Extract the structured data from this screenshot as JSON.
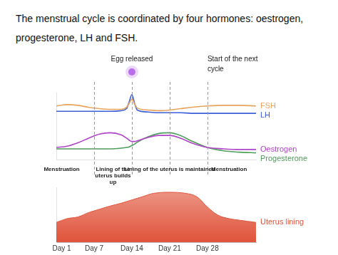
{
  "title": "The menstrual cycle is coordinated by four hormones: oestrogen, progesterone, LH and FSH.",
  "chart_data": [
    {
      "type": "line",
      "x": [
        0,
        2,
        4,
        6,
        8,
        10,
        12,
        13,
        13.5,
        14,
        14.5,
        15,
        17,
        19,
        21,
        23,
        25,
        28,
        31,
        34,
        37
      ],
      "series": [
        {
          "name": "FSH",
          "color": "#e8a45c",
          "values": [
            80,
            82,
            81,
            78,
            76,
            75,
            75,
            78,
            84,
            90,
            83,
            77,
            74,
            73,
            74,
            76,
            78,
            80,
            81,
            81,
            80
          ]
        },
        {
          "name": "LH",
          "color": "#3d5fd9",
          "values": [
            72,
            72,
            72,
            72,
            72,
            72,
            73,
            76,
            86,
            97,
            84,
            74,
            71,
            70,
            70,
            70,
            69,
            69,
            69,
            69,
            69
          ]
        },
        {
          "name": "Oestrogen",
          "color": "#b043c8",
          "values": [
            18,
            20,
            25,
            32,
            38,
            40,
            37,
            32,
            29,
            27,
            27,
            28,
            33,
            36,
            36,
            32,
            25,
            18,
            16,
            15,
            15
          ]
        },
        {
          "name": "Progesterone",
          "color": "#4e9e5c",
          "values": [
            16,
            16,
            16,
            16,
            16,
            16,
            17,
            18,
            19,
            21,
            23,
            26,
            34,
            39,
            40,
            36,
            28,
            18,
            13,
            11,
            10
          ]
        }
      ],
      "xlim": [
        0,
        37
      ],
      "ylim": [
        0,
        100
      ],
      "tick_labels": false,
      "grid": false,
      "dividers": [
        7,
        14,
        21,
        28
      ],
      "annotations": [
        {
          "text": "Egg released",
          "x": 14,
          "marker": "circle",
          "color": "#b86ee8"
        },
        {
          "text": "Start of the next cycle",
          "x": 28
        }
      ],
      "phases": [
        {
          "text": "Menstruation",
          "x": 1
        },
        {
          "text": "Lining of the uterus builds up",
          "x": 10.5
        },
        {
          "text": "Lining of the uterus is maintained",
          "x": 21
        },
        {
          "text": "Menstruation",
          "x": 32
        }
      ]
    },
    {
      "type": "area",
      "x": [
        0,
        2,
        4,
        6,
        8,
        10,
        12,
        14,
        16,
        18,
        21,
        24,
        26,
        28,
        30,
        32,
        34,
        37
      ],
      "series": [
        {
          "name": "Uterus lining",
          "color": "#e0533a",
          "values": [
            36,
            43,
            46,
            54,
            60,
            66,
            71,
            77,
            83,
            89,
            91,
            89,
            83,
            64,
            49,
            43,
            40,
            36
          ]
        }
      ],
      "xlim": [
        0,
        37
      ],
      "ylim": [
        0,
        100
      ],
      "xticks": [
        {
          "value": 1,
          "label": "Day 1"
        },
        {
          "value": 7,
          "label": "Day 7"
        },
        {
          "value": 14,
          "label": "Day 14"
        },
        {
          "value": 21,
          "label": "Day 21"
        },
        {
          "value": 28,
          "label": "Day 28"
        }
      ],
      "tick_labels": "x",
      "grid": false
    }
  ]
}
